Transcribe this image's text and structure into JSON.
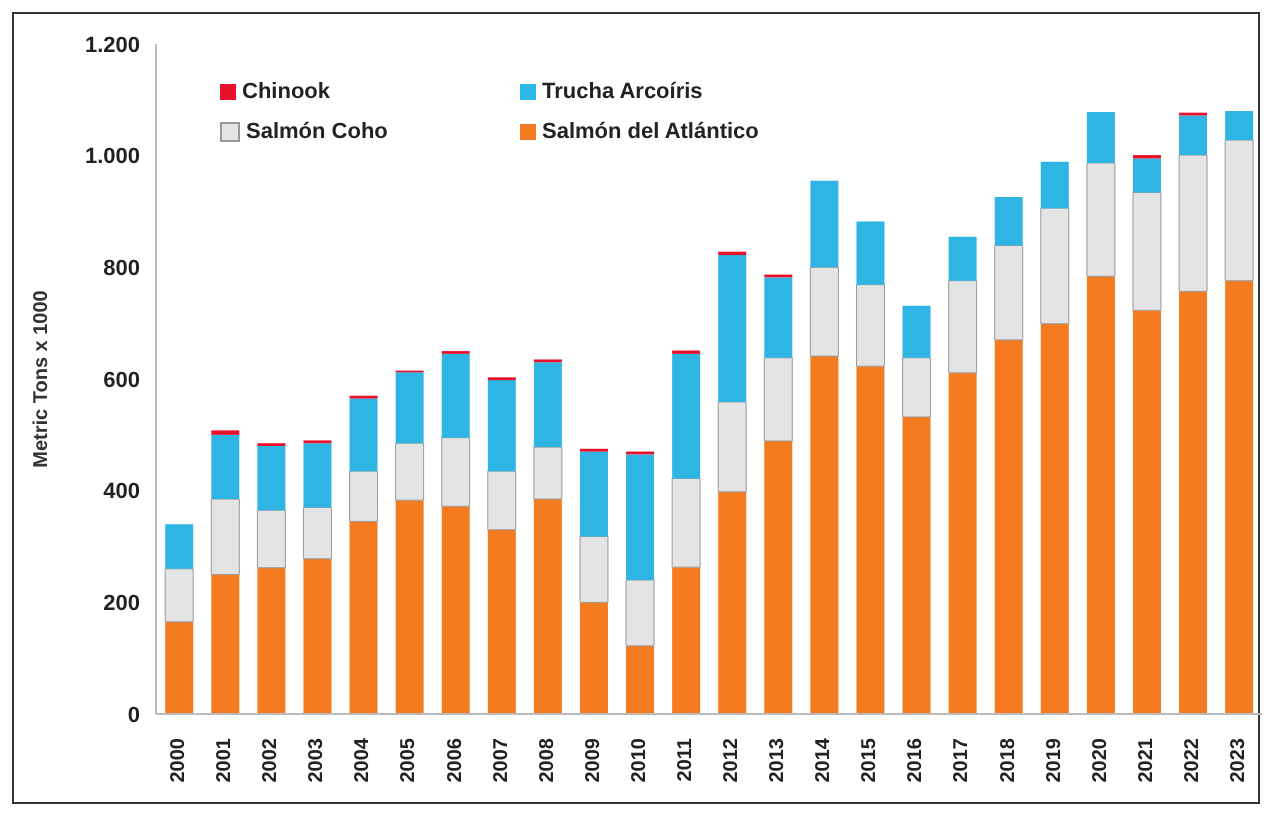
{
  "chart_data": {
    "type": "bar",
    "stacked": true,
    "ylabel": "Metric Tons x 1000",
    "categories": [
      "2000",
      "2001",
      "2002",
      "2003",
      "2004",
      "2005",
      "2006",
      "2007",
      "2008",
      "2009",
      "2010",
      "2011",
      "2012",
      "2013",
      "2014",
      "2015",
      "2016",
      "2017",
      "2018",
      "2019",
      "2020",
      "2021",
      "2022",
      "2023"
    ],
    "series": [
      {
        "name": "Salmón del Atlántico",
        "color": "#f47b20",
        "values": [
          165,
          250,
          262,
          278,
          345,
          383,
          372,
          330,
          385,
          200,
          122,
          263,
          398,
          489,
          641,
          623,
          532,
          611,
          670,
          699,
          784,
          723,
          757,
          776
        ]
      },
      {
        "name": "Salmón Coho",
        "color": "#e4e4e4",
        "values": [
          95,
          135,
          103,
          92,
          90,
          102,
          123,
          105,
          93,
          118,
          118,
          159,
          161,
          149,
          159,
          146,
          106,
          165,
          169,
          207,
          203,
          211,
          244,
          252
        ]
      },
      {
        "name": "Trucha Arcoíris",
        "color": "#2fb5e3",
        "values": [
          80,
          115,
          115,
          115,
          130,
          127,
          150,
          163,
          152,
          152,
          225,
          223,
          263,
          144,
          155,
          113,
          93,
          79,
          87,
          83,
          91,
          61,
          71,
          52
        ]
      },
      {
        "name": "Chinook",
        "color": "#e8102a",
        "values": [
          0,
          8,
          5,
          5,
          5,
          3,
          5,
          5,
          5,
          5,
          5,
          6,
          6,
          5,
          0,
          0,
          0,
          0,
          0,
          0,
          0,
          6,
          5,
          0
        ]
      }
    ],
    "ylim": [
      0,
      1200
    ],
    "yticks": [
      {
        "value": 0,
        "label": "0"
      },
      {
        "value": 200,
        "label": "200"
      },
      {
        "value": 400,
        "label": "400"
      },
      {
        "value": 600,
        "label": "600"
      },
      {
        "value": 800,
        "label": "800"
      },
      {
        "value": 1000,
        "label": "1.000"
      },
      {
        "value": 1200,
        "label": "1.200"
      }
    ],
    "grid": false,
    "legend": "top left"
  }
}
